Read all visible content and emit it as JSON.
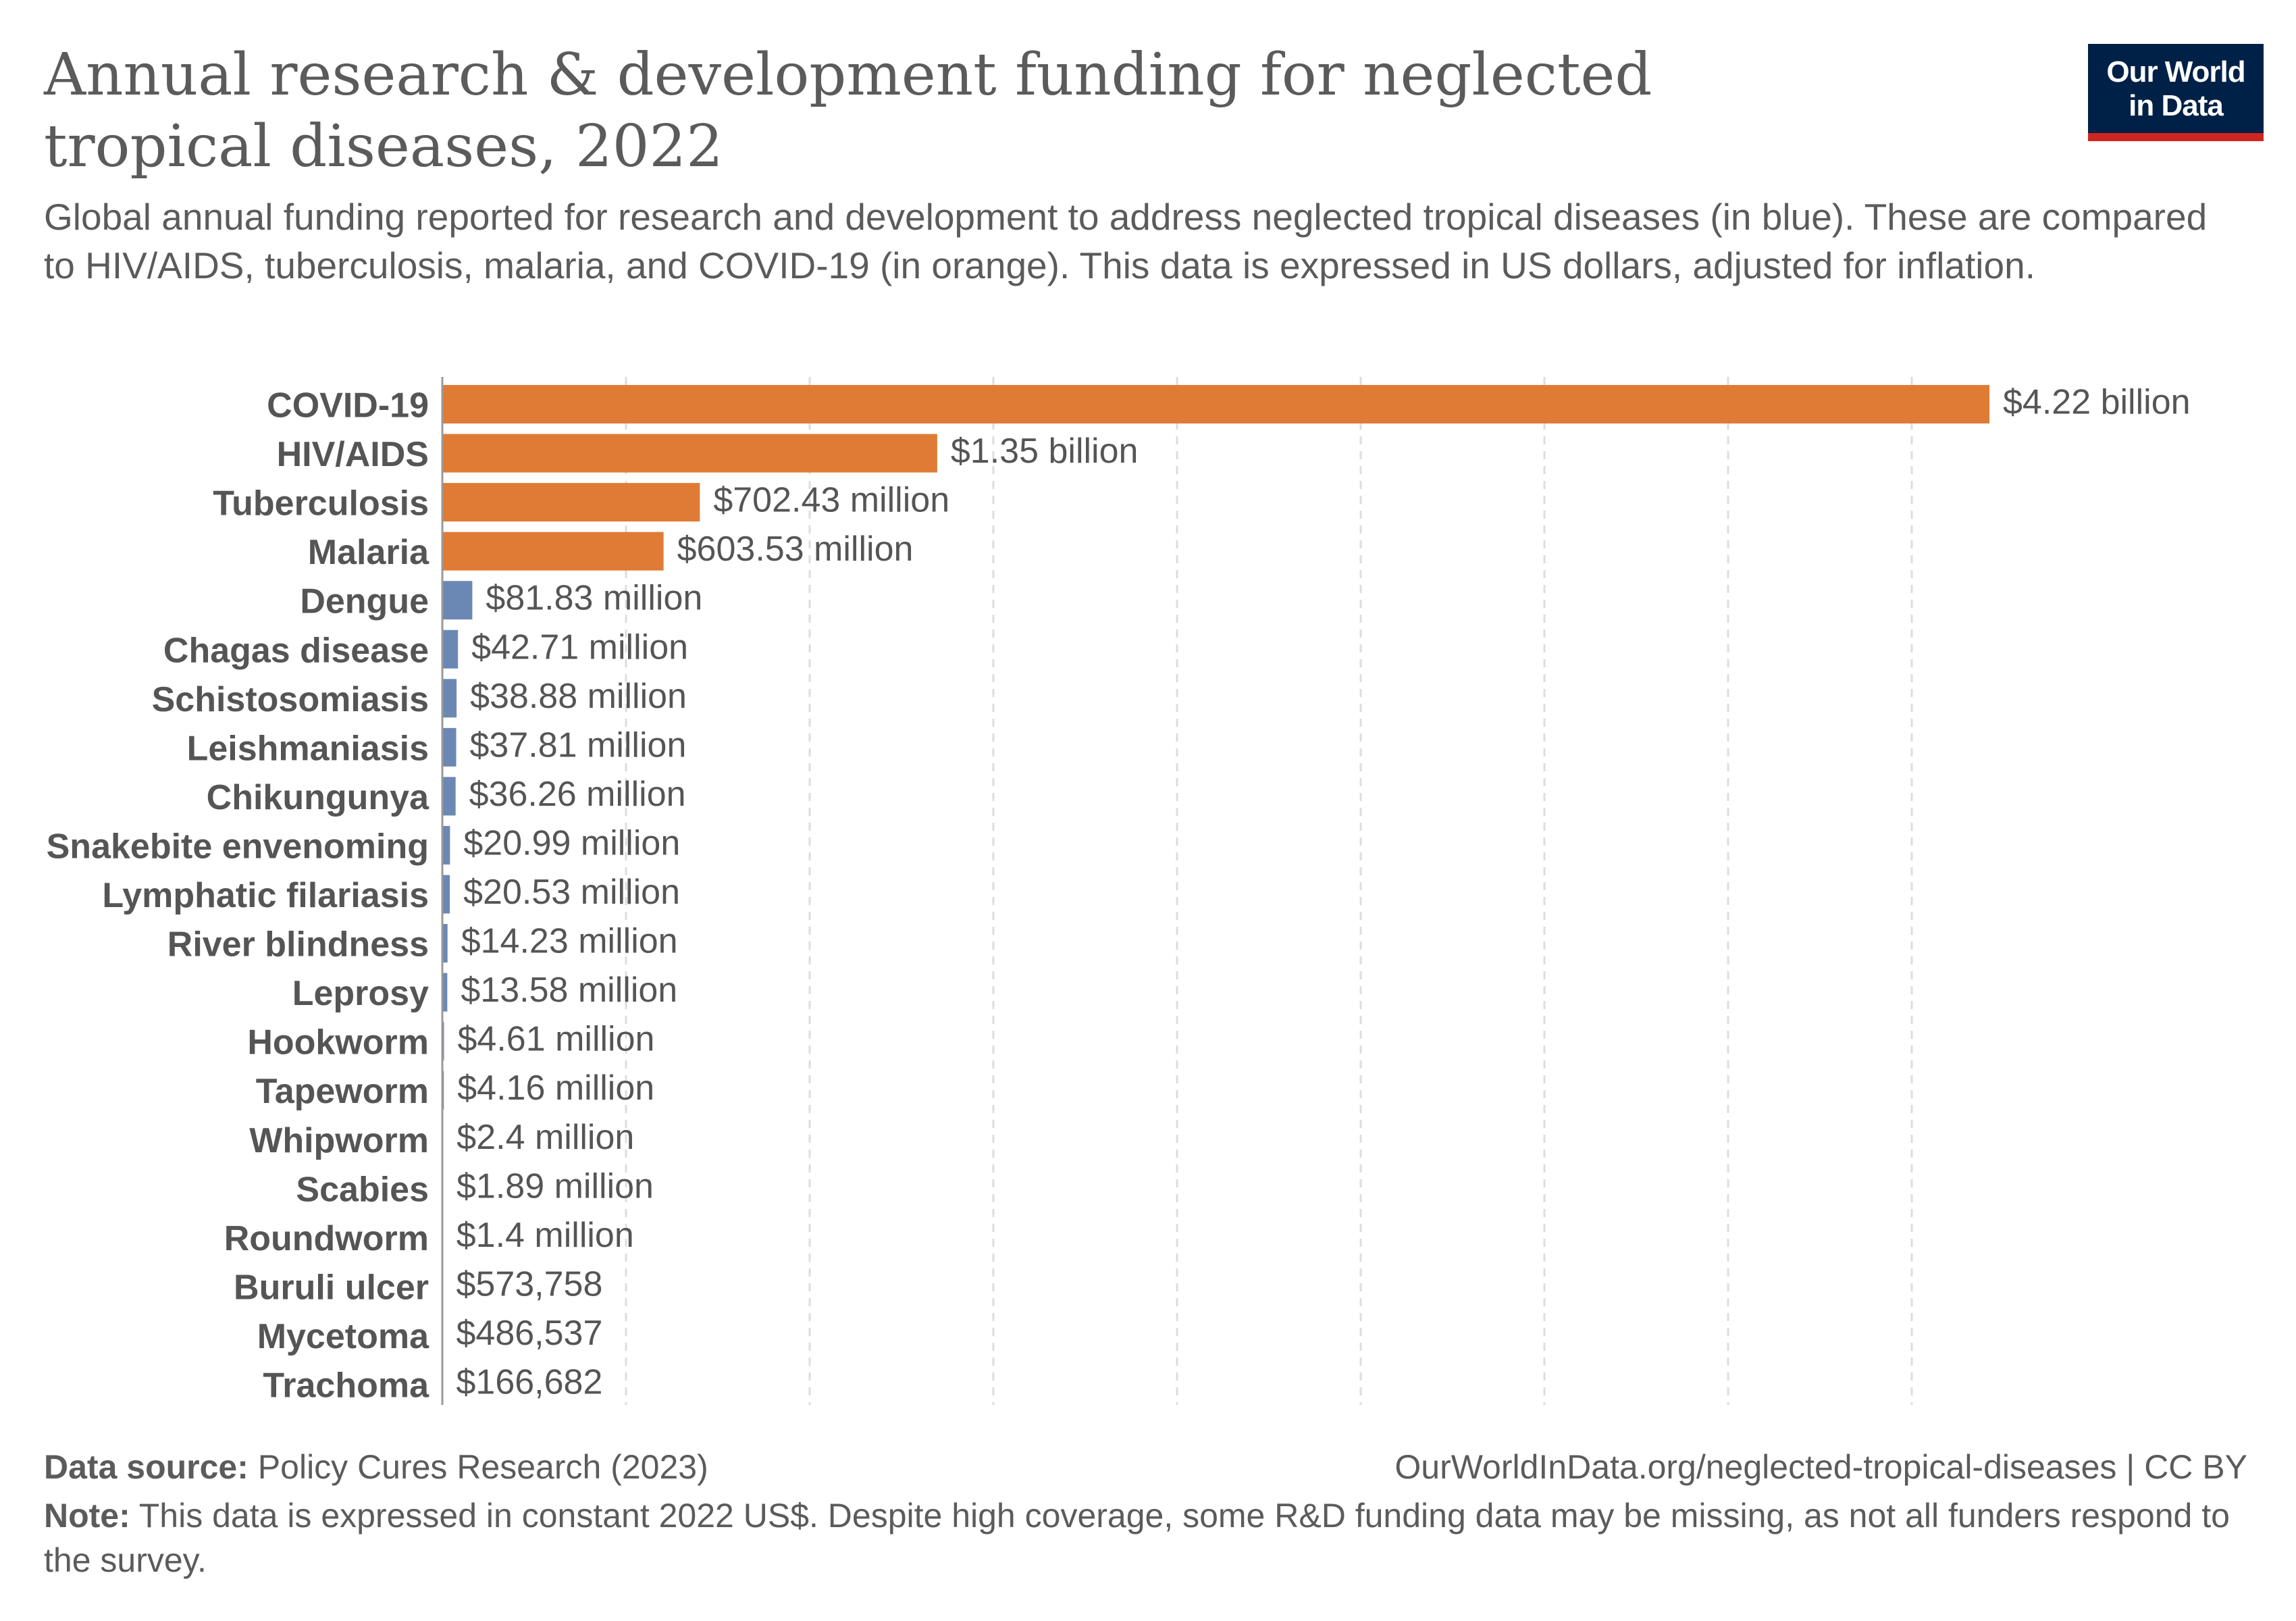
{
  "header": {
    "title": "Annual research & development funding for neglected tropical diseases, 2022",
    "subtitle": "Global annual funding reported for research and development to address neglected tropical diseases (in blue). These are compared to HIV/AIDS, tuberculosis, malaria, and COVID-19 (in orange). This data is expressed in US dollars, adjusted for inflation."
  },
  "logo": {
    "line1": "Our World",
    "line2": "in Data"
  },
  "colors": {
    "comparison": "#e07b35",
    "ntd": "#6b88b4",
    "grid": "#dddddd",
    "axis": "#999999"
  },
  "chart_data": {
    "type": "bar",
    "orientation": "horizontal",
    "title": "Annual research & development funding for neglected tropical diseases, 2022",
    "unit": "US$ (constant 2022)",
    "xlim": [
      0,
      4220000000
    ],
    "gridlines": true,
    "categories": [
      "COVID-19",
      "HIV/AIDS",
      "Tuberculosis",
      "Malaria",
      "Dengue",
      "Chagas disease",
      "Schistosomiasis",
      "Leishmaniasis",
      "Chikungunya",
      "Snakebite envenoming",
      "Lymphatic filariasis",
      "River blindness",
      "Leprosy",
      "Hookworm",
      "Tapeworm",
      "Whipworm",
      "Scabies",
      "Roundworm",
      "Buruli ulcer",
      "Mycetoma",
      "Trachoma"
    ],
    "values": [
      4220000000,
      1350000000,
      702430000,
      603530000,
      81830000,
      42710000,
      38880000,
      37810000,
      36260000,
      20990000,
      20530000,
      14230000,
      13580000,
      4610000,
      4160000,
      2400000,
      1890000,
      1400000,
      573758,
      486537,
      166682
    ],
    "value_labels": [
      "$4.22 billion",
      "$1.35 billion",
      "$702.43 million",
      "$603.53 million",
      "$81.83 million",
      "$42.71 million",
      "$38.88 million",
      "$37.81 million",
      "$36.26 million",
      "$20.99 million",
      "$20.53 million",
      "$14.23 million",
      "$13.58 million",
      "$4.61 million",
      "$4.16 million",
      "$2.4 million",
      "$1.89 million",
      "$1.4 million",
      "$573,758",
      "$486,537",
      "$166,682"
    ],
    "groups": [
      "comparison",
      "comparison",
      "comparison",
      "comparison",
      "ntd",
      "ntd",
      "ntd",
      "ntd",
      "ntd",
      "ntd",
      "ntd",
      "ntd",
      "ntd",
      "ntd",
      "ntd",
      "ntd",
      "ntd",
      "ntd",
      "ntd",
      "ntd",
      "ntd"
    ]
  },
  "footer": {
    "source_label": "Data source:",
    "source_text": "Policy Cures Research (2023)",
    "url": "OurWorldInData.org/neglected-tropical-diseases | CC BY",
    "note_label": "Note:",
    "note_text": "This data is expressed in constant 2022 US$. Despite high coverage, some R&D funding data may be missing, as not all funders respond to the survey."
  }
}
